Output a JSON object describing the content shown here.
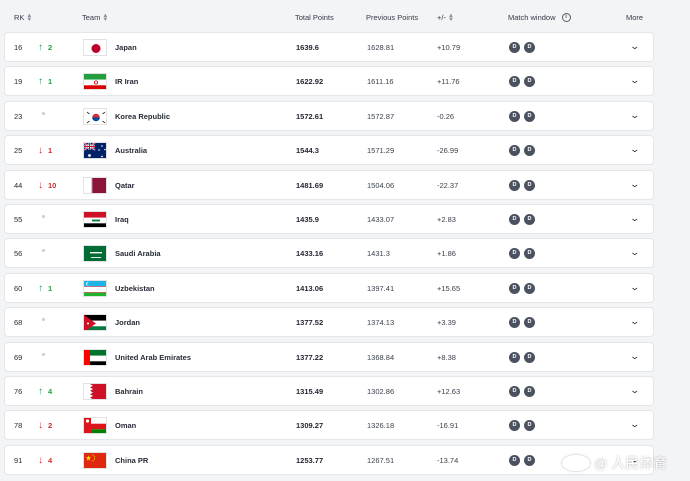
{
  "header": {
    "rk": "RK",
    "team": "Team",
    "total_points": "Total Points",
    "previous_points": "Previous Points",
    "diff": "+/-",
    "match_window": "Match window",
    "more": "More",
    "info_glyph": "i"
  },
  "badge_letter": "D",
  "colors": {
    "up": "#1f9d45",
    "down": "#d12b2b",
    "badge": "#4a5260"
  },
  "rows": [
    {
      "rank": "16",
      "move": "up",
      "change": "2",
      "flag": "japan-flag",
      "team": "Japan",
      "total": "1639.6",
      "previous": "1628.81",
      "diff": "+10.79"
    },
    {
      "rank": "19",
      "move": "up",
      "change": "1",
      "flag": "iran-flag",
      "team": "IR Iran",
      "total": "1622.92",
      "previous": "1611.16",
      "diff": "+11.76"
    },
    {
      "rank": "23",
      "move": "same",
      "change": "",
      "flag": "korea-flag",
      "team": "Korea Republic",
      "total": "1572.61",
      "previous": "1572.87",
      "diff": "-0.26"
    },
    {
      "rank": "25",
      "move": "down",
      "change": "1",
      "flag": "australia-flag",
      "team": "Australia",
      "total": "1544.3",
      "previous": "1571.29",
      "diff": "-26.99"
    },
    {
      "rank": "44",
      "move": "down",
      "change": "10",
      "flag": "qatar-flag",
      "team": "Qatar",
      "total": "1481.69",
      "previous": "1504.06",
      "diff": "-22.37"
    },
    {
      "rank": "55",
      "move": "same",
      "change": "",
      "flag": "iraq-flag",
      "team": "Iraq",
      "total": "1435.9",
      "previous": "1433.07",
      "diff": "+2.83"
    },
    {
      "rank": "56",
      "move": "same",
      "change": "",
      "flag": "saudi-flag",
      "team": "Saudi Arabia",
      "total": "1433.16",
      "previous": "1431.3",
      "diff": "+1.86"
    },
    {
      "rank": "60",
      "move": "up",
      "change": "1",
      "flag": "uzbekistan-flag",
      "team": "Uzbekistan",
      "total": "1413.06",
      "previous": "1397.41",
      "diff": "+15.65"
    },
    {
      "rank": "68",
      "move": "same",
      "change": "",
      "flag": "jordan-flag",
      "team": "Jordan",
      "total": "1377.52",
      "previous": "1374.13",
      "diff": "+3.39"
    },
    {
      "rank": "69",
      "move": "same",
      "change": "",
      "flag": "uae-flag",
      "team": "United Arab Emirates",
      "total": "1377.22",
      "previous": "1368.84",
      "diff": "+8.38"
    },
    {
      "rank": "76",
      "move": "up",
      "change": "4",
      "flag": "bahrain-flag",
      "team": "Bahrain",
      "total": "1315.49",
      "previous": "1302.86",
      "diff": "+12.63"
    },
    {
      "rank": "78",
      "move": "down",
      "change": "2",
      "flag": "oman-flag",
      "team": "Oman",
      "total": "1309.27",
      "previous": "1326.18",
      "diff": "-16.91"
    },
    {
      "rank": "91",
      "move": "down",
      "change": "4",
      "flag": "china-flag",
      "team": "China PR",
      "total": "1253.77",
      "previous": "1267.51",
      "diff": "-13.74"
    }
  ],
  "watermark": {
    "at": "@",
    "text": "人民体育"
  }
}
